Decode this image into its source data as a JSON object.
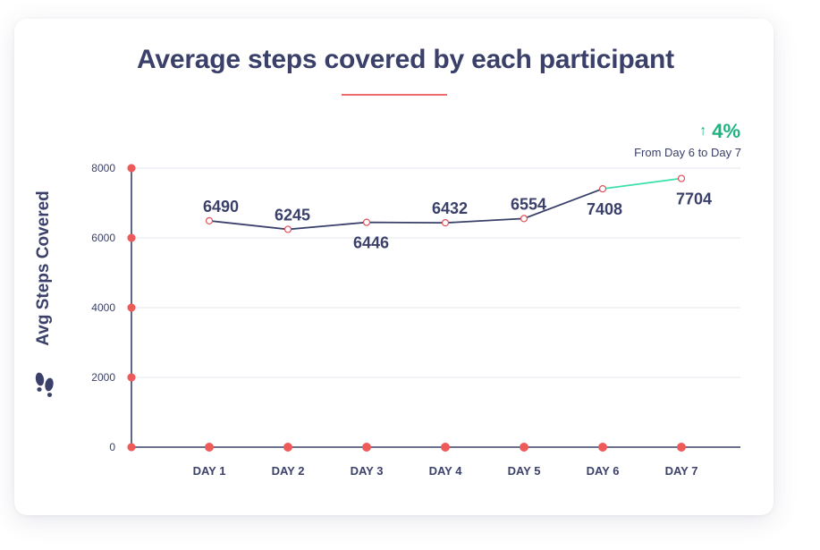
{
  "chart_data": {
    "type": "line",
    "title": "Average steps covered by each participant",
    "xlabel": "",
    "ylabel": "Avg Steps Covered",
    "categories": [
      "DAY 1",
      "DAY 2",
      "DAY 3",
      "DAY 4",
      "DAY 5",
      "DAY 6",
      "DAY 7"
    ],
    "series": [
      {
        "name": "Avg Steps Covered",
        "values": [
          6490,
          6245,
          6446,
          6432,
          6554,
          7408,
          7704
        ],
        "point_labels": [
          "6490",
          "6245",
          "6446",
          "6432",
          "6554",
          "7408",
          "7704"
        ]
      }
    ],
    "ylim": [
      0,
      8000
    ],
    "yticks": [
      0,
      2000,
      4000,
      6000,
      8000
    ],
    "ytick_labels": [
      "0",
      "2000",
      "4000",
      "6000",
      "8000"
    ],
    "grid": true,
    "highlight": {
      "from_index": 5,
      "to_index": 6,
      "change_label": "4%",
      "change_caption": "From Day 6 to Day 7",
      "direction": "up"
    }
  },
  "colors": {
    "line": "#3a4069",
    "highlight_line": "#3de0ad",
    "axis_dot": "#ee5a5a",
    "marker_stroke": "#e0505a",
    "change_text": "#1fb281",
    "grid": "#e6e7ee",
    "title_underline": "#ee6b6b"
  },
  "icons": {
    "change_direction": "arrow-up-icon",
    "ylabel_icon": "footprints-icon"
  }
}
